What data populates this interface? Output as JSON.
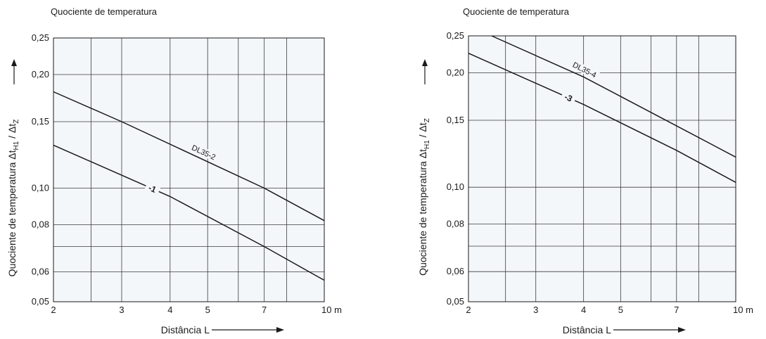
{
  "chart_data": [
    {
      "type": "line",
      "title": "Quociente de temperatura",
      "xlabel": "Distância L",
      "ylabel": "Quociente de temperatura Δt_H1 / Δt_Z",
      "x_scale": "log",
      "y_scale": "log",
      "xlim": [
        2,
        10
      ],
      "ylim": [
        0.05,
        0.25
      ],
      "x_unit": "m",
      "x_gridlines": [
        2,
        2.5,
        3,
        4,
        5,
        6,
        7,
        8,
        10
      ],
      "x_ticks": [
        {
          "value": 2,
          "label": "2"
        },
        {
          "value": 3,
          "label": "3"
        },
        {
          "value": 4,
          "label": "4"
        },
        {
          "value": 5,
          "label": "5"
        },
        {
          "value": 7,
          "label": "7"
        },
        {
          "value": 10,
          "label": "10 m"
        }
      ],
      "y_gridlines": [
        0.05,
        0.06,
        0.07,
        0.08,
        0.1,
        0.15,
        0.2,
        0.25
      ],
      "y_ticks": [
        {
          "value": 0.05,
          "label": "0,05"
        },
        {
          "value": 0.06,
          "label": "0,06"
        },
        {
          "value": 0.08,
          "label": "0,08"
        },
        {
          "value": 0.1,
          "label": "0,10"
        },
        {
          "value": 0.15,
          "label": "0,15"
        },
        {
          "value": 0.2,
          "label": "0,20"
        },
        {
          "value": 0.25,
          "label": "0,25"
        }
      ],
      "grid": true,
      "series": [
        {
          "name": "DL35-2",
          "x": [
            2,
            3,
            7,
            10
          ],
          "y": [
            0.18,
            0.15,
            0.1,
            0.082
          ]
        },
        {
          "name": "-1",
          "x": [
            2,
            4,
            7,
            10
          ],
          "y": [
            0.13,
            0.095,
            0.07,
            0.057
          ]
        }
      ],
      "annotations": [
        {
          "text": "DL35-2",
          "series": 0,
          "x": 4.8
        },
        {
          "text": "-1",
          "series": 1,
          "x": 3.6
        }
      ]
    },
    {
      "type": "line",
      "title": "Quociente de temperatura",
      "xlabel": "Distância L",
      "ylabel": "Quociente de temperatura Δt_H1 / Δt_Z",
      "x_scale": "log",
      "y_scale": "log",
      "xlim": [
        2,
        10
      ],
      "ylim": [
        0.05,
        0.25
      ],
      "x_unit": "m",
      "x_gridlines": [
        2,
        2.5,
        3,
        4,
        5,
        6,
        7,
        8,
        10
      ],
      "x_ticks": [
        {
          "value": 2,
          "label": "2"
        },
        {
          "value": 3,
          "label": "3"
        },
        {
          "value": 4,
          "label": "4"
        },
        {
          "value": 5,
          "label": "5"
        },
        {
          "value": 7,
          "label": "7"
        },
        {
          "value": 10,
          "label": "10 m"
        }
      ],
      "y_gridlines": [
        0.05,
        0.06,
        0.07,
        0.08,
        0.1,
        0.15,
        0.2,
        0.25
      ],
      "y_ticks": [
        {
          "value": 0.05,
          "label": "0,05"
        },
        {
          "value": 0.06,
          "label": "0,06"
        },
        {
          "value": 0.08,
          "label": "0,08"
        },
        {
          "value": 0.1,
          "label": "0,10"
        },
        {
          "value": 0.15,
          "label": "0,15"
        },
        {
          "value": 0.2,
          "label": "0,20"
        },
        {
          "value": 0.25,
          "label": "0,25"
        }
      ],
      "grid": true,
      "series": [
        {
          "name": "DL35-4",
          "x": [
            2.3,
            4,
            7,
            10
          ],
          "y": [
            0.25,
            0.195,
            0.145,
            0.12
          ]
        },
        {
          "name": "-3",
          "x": [
            2,
            4,
            7,
            10
          ],
          "y": [
            0.225,
            0.165,
            0.125,
            0.103
          ]
        }
      ],
      "annotations": [
        {
          "text": "DL35-4",
          "series": 0,
          "x": 3.95
        },
        {
          "text": "-3",
          "series": 1,
          "x": 3.65
        }
      ]
    }
  ]
}
